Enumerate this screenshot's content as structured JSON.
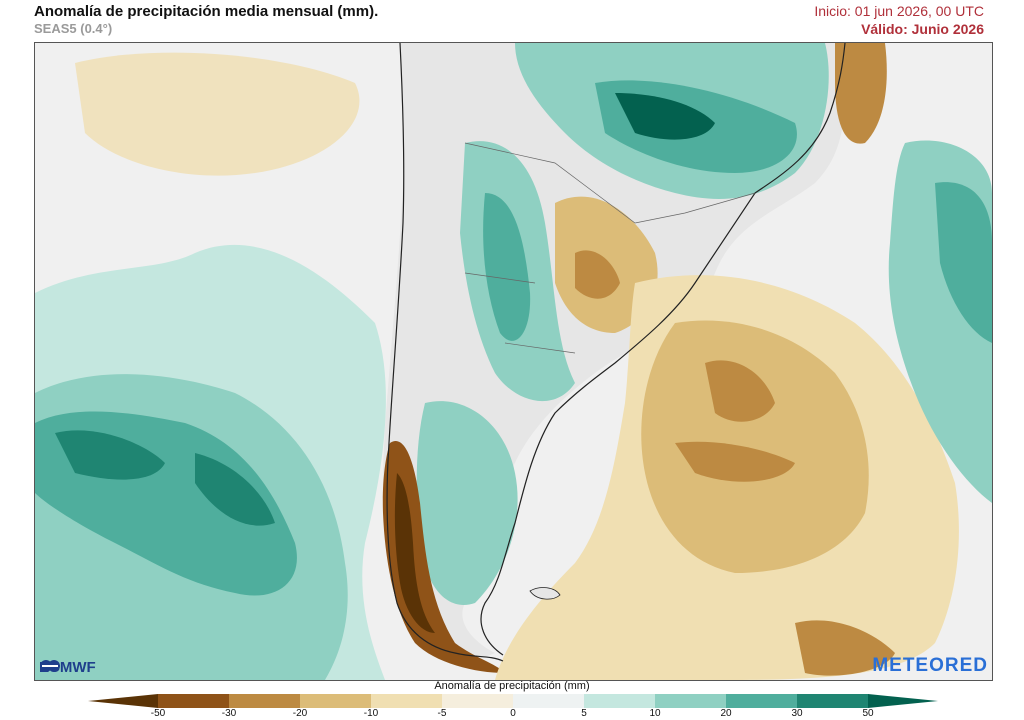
{
  "header": {
    "title": "Anomalía de precipitación media mensual (mm).",
    "model": "SEAS5 (0.4°)",
    "init_time": "Inicio: 01 jun 2026, 00 UTC",
    "valid_time": "Válido: Junio 2026"
  },
  "logos": {
    "ecmwf": "ECMWF",
    "meteored": "METEORED"
  },
  "legend": {
    "title": "Anomalía de precipitación (mm)",
    "ticks": [
      "-50",
      "-30",
      "-20",
      "-10",
      "-5",
      "0",
      "5",
      "10",
      "20",
      "30",
      "50"
    ],
    "colors": [
      "#5a3306",
      "#8f5318",
      "#bd8a42",
      "#dcbc78",
      "#f0dfb2",
      "#f5eedd",
      "#eef2f2",
      "#c4e7df",
      "#8fd0c2",
      "#4fae9d",
      "#1f8572",
      "#03614f"
    ]
  },
  "colors": {
    "land_base": "#e6e6e6",
    "ocean_neutral": "#f0f0f0",
    "wet_light": "#c4e7df",
    "wet_mid": "#8fd0c2",
    "wet_strong": "#4fae9d",
    "wet_dark": "#03614f",
    "dry_light": "#f0dfb2",
    "dry_mid": "#dcbc78",
    "dry_strong": "#bd8a42",
    "dry_dark": "#8f5318",
    "accent_red": "#b0303a"
  }
}
